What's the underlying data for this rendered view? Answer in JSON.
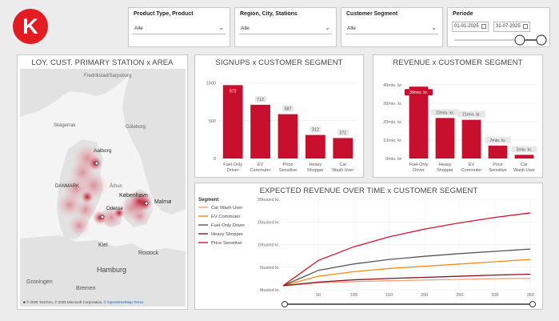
{
  "logo": {
    "letter": "K"
  },
  "filters": [
    {
      "title": "Product Type, Product",
      "value": "Alle"
    },
    {
      "title": "Region, City, Stations",
      "value": "Alle"
    },
    {
      "title": "Customer Segment",
      "value": "Alle"
    }
  ],
  "period": {
    "title": "Periode",
    "start": "01-01-2025",
    "end": "31-07-2025"
  },
  "map": {
    "title": "LOY. CUST. PRIMARY STATION x AREA",
    "labels": [
      "Fredrikstad/Sarpsborg",
      "Skagerrak",
      "Göteborg",
      "Aalborg",
      "DANMARK",
      "Århus",
      "København",
      "Malmø",
      "Odense",
      "Kiel",
      "Rostock",
      "Hamburg",
      "Groningen",
      "Bremen"
    ],
    "attribution": "© 2025 TomTom, © 2025 Microsoft Corporation, ",
    "osm_link": "© OpenStreetMap",
    "terms": "Terms"
  },
  "signups": {
    "title": "SIGNUPS x CUSTOMER SEGMENT",
    "chart_data": {
      "type": "bar",
      "categories": [
        "Fuel-Only Driver",
        "EV Commuter",
        "Price Sensitive",
        "Heavy Shopper",
        "Car Wash User"
      ],
      "values": [
        972,
        712,
        587,
        312,
        271
      ],
      "data_labels": [
        "972",
        "712",
        "587",
        "312",
        "271"
      ],
      "yticks": [
        "0",
        "500",
        "1000"
      ],
      "ylim": [
        0,
        1050
      ]
    }
  },
  "revenue": {
    "title": "REVENUE x CUSTOMER SEGMENT",
    "chart_data": {
      "type": "bar",
      "categories": [
        "Fuel-Only Driver",
        "Heavy Shopper",
        "EV Commuter",
        "Price Sensitive",
        "Car Wash User"
      ],
      "values": [
        39,
        22,
        21,
        7,
        2
      ],
      "data_labels": [
        "39mio. kr.",
        "22mio. kr.",
        "21mio. kr.",
        "7mio. kr.",
        "2mio. kr."
      ],
      "yticks": [
        "0mio. kr.",
        "10mio. kr.",
        "20mio. kr.",
        "30mio. kr.",
        "40mio. kr."
      ],
      "ylim": [
        0,
        43
      ]
    }
  },
  "expected": {
    "title": "EXPECTED REVENUE OVER TIME x CUSTOMER SEGMENT",
    "legend_title": "Segment",
    "chart_data": {
      "type": "line",
      "xticks": [
        50,
        100,
        150,
        200,
        250,
        300,
        350
      ],
      "xlim": [
        0,
        360
      ],
      "yticks": [
        "0tusind kr.",
        "5tusind kr.",
        "10tusind kr.",
        "15tusind kr.",
        "20tusind kr."
      ],
      "ylim": [
        0,
        20000
      ],
      "series": [
        {
          "name": "Car Wash User",
          "color": "#f2a07a",
          "values": [
            [
              0,
              900
            ],
            [
              50,
              1500
            ],
            [
              100,
              1800
            ],
            [
              150,
              2000
            ],
            [
              200,
              2150
            ],
            [
              250,
              2300
            ],
            [
              300,
              2450
            ],
            [
              350,
              2550
            ]
          ]
        },
        {
          "name": "EV Commuter",
          "color": "#f28c16",
          "values": [
            [
              0,
              900
            ],
            [
              50,
              3000
            ],
            [
              100,
              4000
            ],
            [
              150,
              4700
            ],
            [
              200,
              5200
            ],
            [
              250,
              5700
            ],
            [
              300,
              6200
            ],
            [
              350,
              6700
            ]
          ]
        },
        {
          "name": "Fuel-Only Driver",
          "color": "#555555",
          "values": [
            [
              0,
              900
            ],
            [
              50,
              4300
            ],
            [
              100,
              5700
            ],
            [
              150,
              6700
            ],
            [
              200,
              7400
            ],
            [
              250,
              8000
            ],
            [
              300,
              8500
            ],
            [
              350,
              9000
            ]
          ]
        },
        {
          "name": "Heavy Shopper",
          "color": "#8a1020",
          "values": [
            [
              0,
              900
            ],
            [
              50,
              1700
            ],
            [
              100,
              2200
            ],
            [
              150,
              2500
            ],
            [
              200,
              2750
            ],
            [
              250,
              3000
            ],
            [
              300,
              3250
            ],
            [
              350,
              3450
            ]
          ]
        },
        {
          "name": "Price Sensitive",
          "color": "#d0142c",
          "values": [
            [
              0,
              900
            ],
            [
              50,
              6500
            ],
            [
              100,
              9500
            ],
            [
              150,
              11700
            ],
            [
              200,
              13400
            ],
            [
              250,
              14800
            ],
            [
              300,
              16000
            ],
            [
              350,
              17000
            ]
          ]
        }
      ]
    }
  },
  "colors": {
    "bar": "#c8102e",
    "accent": "#e31b23"
  }
}
